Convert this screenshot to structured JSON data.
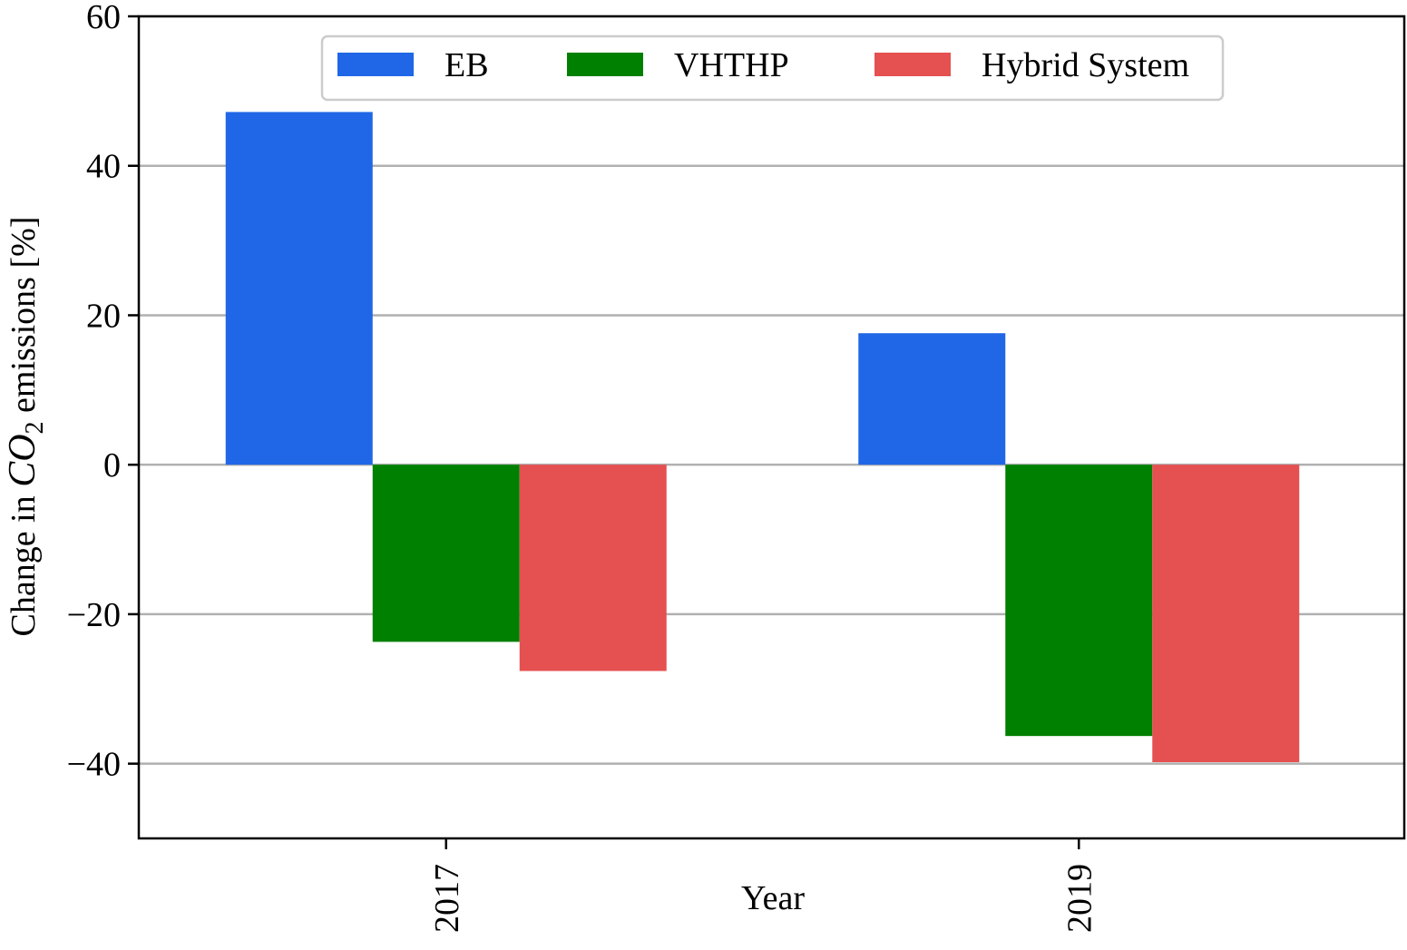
{
  "chart_data": {
    "type": "bar",
    "categories": [
      "2017",
      "2019"
    ],
    "series": [
      {
        "name": "EB",
        "color": "#1f67e6",
        "values": [
          47.2,
          17.6
        ]
      },
      {
        "name": "VHTHP",
        "color": "#008000",
        "values": [
          -23.7,
          -36.3
        ]
      },
      {
        "name": "Hybrid System",
        "color": "#e55050",
        "values": [
          -27.6,
          -39.8
        ]
      }
    ],
    "xlabel": "Year",
    "ylabel": "Change in CO2 emissions [%]",
    "ylabel_parts": {
      "prefix": "Change in ",
      "formula": "CO",
      "subscript": "2",
      "suffix": " emissions [%]"
    },
    "ylim": [
      -50,
      60
    ],
    "yticks": [
      60,
      40,
      20,
      0,
      -20,
      -40
    ],
    "ytick_labels": [
      "60",
      "40",
      "20",
      "0",
      "−20",
      "−40"
    ],
    "grid": "horizontal",
    "legend_position": "top-center",
    "tick_label_rotation": "vertical"
  }
}
